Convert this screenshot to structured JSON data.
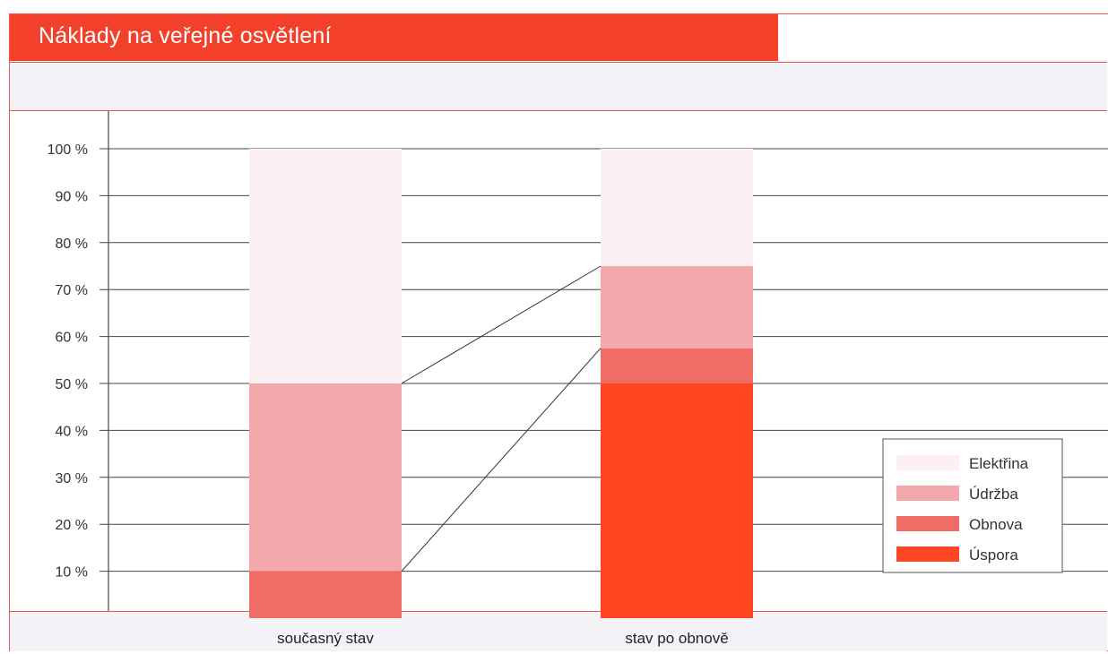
{
  "header": {
    "title": "Náklady na veřejné osvětlení"
  },
  "chart_data": {
    "type": "bar",
    "stacked": true,
    "title": "Náklady na veřejné osvětlení",
    "xlabel": "",
    "ylabel": "",
    "ylim": [
      0,
      100
    ],
    "yticks": [
      "10 %",
      "20 %",
      "30 %",
      "40 %",
      "50 %",
      "60 %",
      "70 %",
      "80 %",
      "90 %",
      "100 %"
    ],
    "categories": [
      "současný stav",
      "stav po obnově"
    ],
    "series": [
      {
        "name": "Úspora",
        "values": [
          0,
          50
        ],
        "color": "#ff4522"
      },
      {
        "name": "Obnova",
        "values": [
          10,
          7.5
        ],
        "color": "#ef6d66"
      },
      {
        "name": "Údržba",
        "values": [
          40,
          17.5
        ],
        "color": "#f3a9ab"
      },
      {
        "name": "Elektřina",
        "values": [
          50,
          25
        ],
        "color": "#fcf0f3"
      }
    ],
    "legend": {
      "position": "bottom-right",
      "order": [
        "Elektřina",
        "Údržba",
        "Obnova",
        "Úspora"
      ]
    },
    "grid": true,
    "connectors": true
  },
  "colors": {
    "accent": "#f2402a",
    "band": "#f4f3f8",
    "border": "#e9574a",
    "grid": "#444444"
  }
}
